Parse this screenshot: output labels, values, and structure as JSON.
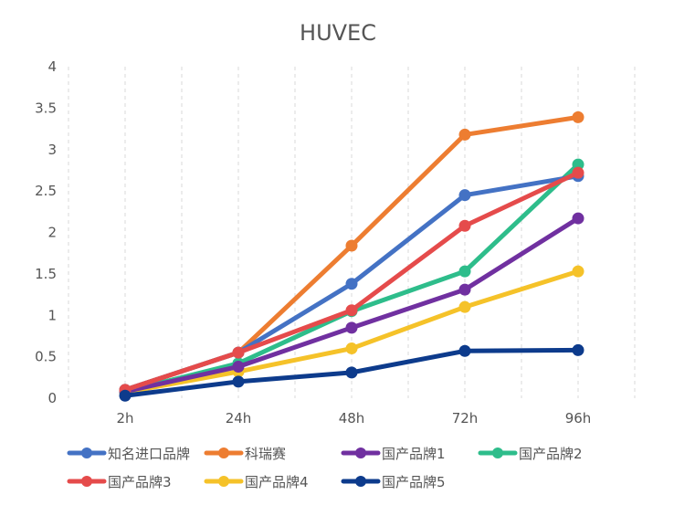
{
  "chart_data": {
    "type": "line",
    "title": "HUVEC",
    "xlabel": "",
    "ylabel": "",
    "categories": [
      "2h",
      "24h",
      "48h",
      "72h",
      "96h"
    ],
    "ylim": [
      0,
      4
    ],
    "yticks": [
      0,
      0.5,
      1,
      1.5,
      2,
      2.5,
      3,
      3.5,
      4
    ],
    "ytick_labels": [
      "0",
      "0.5",
      "1",
      "1.5",
      "2",
      "2.5",
      "3",
      "3.5",
      "4"
    ],
    "grid": "vertical-dashed",
    "legend_position": "bottom",
    "series": [
      {
        "name": "知名进口品牌",
        "color": "#4472C4",
        "values": [
          0.1,
          0.55,
          1.38,
          2.45,
          2.68
        ]
      },
      {
        "name": "科瑞赛",
        "color": "#ED7D31",
        "values": [
          0.1,
          0.55,
          1.84,
          3.18,
          3.39
        ]
      },
      {
        "name": "国产品牌1",
        "color": "#7030A0",
        "values": [
          0.08,
          0.38,
          0.85,
          1.31,
          2.17
        ]
      },
      {
        "name": "国产品牌2",
        "color": "#2EBD8B",
        "values": [
          0.08,
          0.42,
          1.05,
          1.53,
          2.82
        ]
      },
      {
        "name": "国产品牌3",
        "color": "#E54B4B",
        "values": [
          0.1,
          0.55,
          1.06,
          2.08,
          2.72
        ]
      },
      {
        "name": "国产品牌4",
        "color": "#F5C229",
        "values": [
          0.07,
          0.32,
          0.6,
          1.1,
          1.53
        ]
      },
      {
        "name": "国产品牌5",
        "color": "#0D3B8C",
        "values": [
          0.03,
          0.2,
          0.31,
          0.57,
          0.58
        ]
      }
    ],
    "draw_order": [
      5,
      3,
      2,
      1,
      0,
      4,
      6
    ]
  }
}
